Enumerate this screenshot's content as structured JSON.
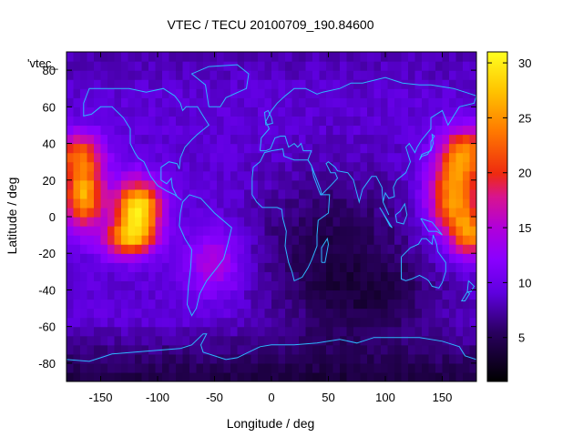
{
  "chart_data": {
    "type": "heatmap",
    "title": "VTEC / TECU 20100709_190.84600",
    "xlabel": "Longitude / deg",
    "ylabel": "Latitude / deg",
    "series_key_label": "'vtec_",
    "xlim": [
      -180,
      180
    ],
    "ylim": [
      -90,
      90
    ],
    "x_ticks": [
      -150,
      -100,
      -50,
      0,
      50,
      100,
      150
    ],
    "y_ticks": [
      -80,
      -60,
      -40,
      -20,
      0,
      20,
      40,
      60,
      80
    ],
    "colorbar": {
      "range": [
        1,
        31
      ],
      "ticks": [
        5,
        10,
        15,
        20,
        25,
        30
      ],
      "palette": "black-blue-purple-red-orange-yellow"
    },
    "grid": false,
    "legend": "top-left",
    "coastlines": true,
    "coastline_color": "#2db8ff",
    "features": [
      {
        "description": "equatorial enhancement over the Americas (east)",
        "lon_range": [
          -140,
          -95
        ],
        "lat_range": [
          -22,
          30
        ],
        "peak_tecu": 30
      },
      {
        "description": "equatorial enhancement over the eastern Pacific (west)",
        "lon_range": [
          -180,
          -145
        ],
        "lat_range": [
          -18,
          35
        ],
        "peak_tecu": 26
      },
      {
        "description": "equatorial enhancement over the western Pacific / Asia",
        "lon_range": [
          125,
          180
        ],
        "lat_range": [
          -20,
          45
        ],
        "peak_tecu": 28
      },
      {
        "description": "mid-latitude night-side minimum over Africa / Indian Ocean",
        "lon_range": [
          -20,
          120
        ],
        "lat_range": [
          -60,
          30
        ],
        "min_tecu": 3
      },
      {
        "description": "southern polar minimum",
        "lon_range": [
          -180,
          180
        ],
        "lat_range": [
          -90,
          -65
        ],
        "min_tecu": 1
      }
    ]
  }
}
